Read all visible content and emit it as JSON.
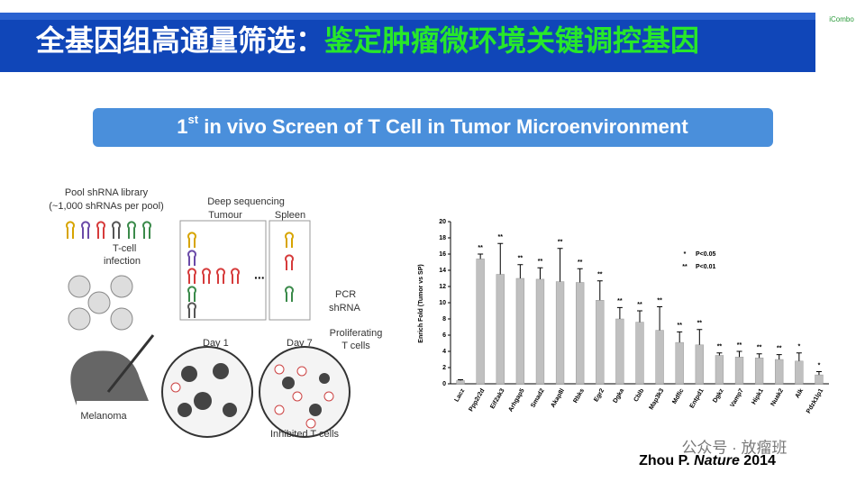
{
  "header": {
    "title_white": "全基因组高通量筛选：",
    "title_green": "鉴定肿瘤微环境关键调控基因",
    "logo": "iCombo"
  },
  "subtitle": {
    "ordinal": "1",
    "suffix": "st",
    "rest": " in vivo Screen of T Cell in Tumor Microenvironment"
  },
  "diagram": {
    "pool": "Pool shRNA library",
    "pool_note": "(~1,000 shRNAs per pool)",
    "infection_1": "T-cell",
    "infection_2": "infection",
    "deep": "Deep sequencing",
    "tumour": "Tumour",
    "spleen": "Spleen",
    "dots": "...",
    "pcr_1": "PCR",
    "pcr_2": "shRNA",
    "day1": "Day 1",
    "day7": "Day 7",
    "prolif_1": "Proliferating",
    "prolif_2": "T cells",
    "melanoma": "Melanoma",
    "inhibited": "Inhibited T cells"
  },
  "citation": {
    "author": "Zhou P. ",
    "journal": "Nature",
    "year": " 2014"
  },
  "watermark": "公众号 · 放瘤班",
  "chart_data": {
    "type": "bar",
    "y_label": "Enrich Fold (Tumor vs SP)",
    "categories": [
      "Lacz",
      "Ppp2r2d",
      "Eif2ak3",
      "Arhgap5",
      "Smad2",
      "Akap8l",
      "Rbks",
      "Egr2",
      "Dgka",
      "Cblb",
      "Map3k3",
      "Mdfic",
      "Entpd1",
      "Dgkz",
      "Vamp7",
      "Hipk1",
      "Nuak2",
      "Alk",
      "Pdzk1lp1"
    ],
    "values": [
      0.4,
      15.4,
      13.5,
      13.0,
      12.9,
      12.6,
      12.5,
      10.3,
      8.0,
      7.6,
      6.6,
      5.1,
      4.8,
      3.5,
      3.3,
      3.2,
      3.0,
      2.8,
      1.1
    ],
    "errors": [
      0.1,
      0.6,
      3.8,
      1.7,
      1.4,
      4.1,
      1.7,
      2.4,
      1.4,
      1.4,
      2.9,
      1.3,
      1.9,
      0.3,
      0.7,
      0.5,
      0.6,
      1.0,
      0.4
    ],
    "significance": [
      null,
      "**",
      "**",
      "**",
      "**",
      "**",
      "**",
      "**",
      "**",
      "**",
      "**",
      "**",
      "**",
      "**",
      "**",
      "**",
      "**",
      "*",
      "*"
    ],
    "color": "#c0c0c0",
    "ylim": [
      0,
      20
    ],
    "yticks": [
      0,
      2,
      4,
      6,
      8,
      10,
      12,
      14,
      16,
      18,
      20
    ],
    "legend": [
      {
        "symbol": "*",
        "label": "P<0.05"
      },
      {
        "symbol": "**",
        "label": "P<0.01"
      }
    ]
  }
}
